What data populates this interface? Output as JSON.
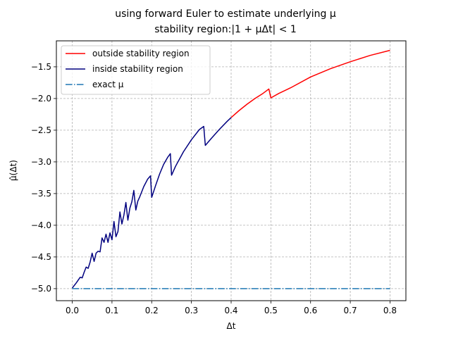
{
  "chart_data": {
    "type": "line",
    "title": "using forward Euler to estimate underlying μ",
    "subtitle": "stability region:|1 + μΔt| < 1",
    "xlabel": "Δt",
    "ylabel": "μ̂(Δt)",
    "xlim": [
      -0.04,
      0.84
    ],
    "ylim": [
      -5.19,
      -1.09
    ],
    "grid": true,
    "grid_style": "dashed",
    "legend_position": "upper-left",
    "x_ticks": [
      "0.0",
      "0.1",
      "0.2",
      "0.3",
      "0.4",
      "0.5",
      "0.6",
      "0.7",
      "0.8"
    ],
    "y_ticks": [
      "−5.0",
      "−4.5",
      "−4.0",
      "−3.5",
      "−3.0",
      "−2.5",
      "−2.0",
      "−1.5"
    ],
    "x_tick_values": [
      0.0,
      0.1,
      0.2,
      0.3,
      0.4,
      0.5,
      0.6,
      0.7,
      0.8
    ],
    "y_tick_values": [
      -5.0,
      -4.5,
      -4.0,
      -3.5,
      -3.0,
      -2.5,
      -2.0,
      -1.5
    ],
    "series": [
      {
        "name": "outside stability region",
        "color": "#ff0000",
        "style": "solid",
        "x": [
          0.4,
          0.42,
          0.44,
          0.46,
          0.48,
          0.495,
          0.5,
          0.52,
          0.55,
          0.6,
          0.65,
          0.7,
          0.75,
          0.8
        ],
        "y": [
          -2.3,
          -2.19,
          -2.09,
          -2.0,
          -1.92,
          -1.85,
          -1.99,
          -1.92,
          -1.83,
          -1.66,
          -1.53,
          -1.42,
          -1.32,
          -1.24
        ]
      },
      {
        "name": "inside stability region",
        "color": "#00007f",
        "style": "solid",
        "x": [
          0.0,
          0.01,
          0.02,
          0.025,
          0.03,
          0.035,
          0.04,
          0.045,
          0.05,
          0.055,
          0.06,
          0.065,
          0.07,
          0.075,
          0.08,
          0.085,
          0.09,
          0.095,
          0.1,
          0.105,
          0.11,
          0.115,
          0.12,
          0.125,
          0.13,
          0.135,
          0.14,
          0.145,
          0.15,
          0.155,
          0.16,
          0.165,
          0.17,
          0.18,
          0.19,
          0.197,
          0.2,
          0.21,
          0.22,
          0.23,
          0.24,
          0.247,
          0.25,
          0.26,
          0.28,
          0.3,
          0.32,
          0.331,
          0.335,
          0.35,
          0.37,
          0.39,
          0.4
        ],
        "y": [
          -4.99,
          -4.91,
          -4.82,
          -4.83,
          -4.74,
          -4.66,
          -4.68,
          -4.58,
          -4.44,
          -4.57,
          -4.44,
          -4.41,
          -4.42,
          -4.2,
          -4.27,
          -4.14,
          -4.27,
          -4.12,
          -4.23,
          -3.94,
          -4.18,
          -4.1,
          -3.79,
          -3.98,
          -3.84,
          -3.64,
          -3.92,
          -3.73,
          -3.63,
          -3.45,
          -3.76,
          -3.62,
          -3.55,
          -3.39,
          -3.27,
          -3.22,
          -3.56,
          -3.37,
          -3.19,
          -3.04,
          -2.93,
          -2.87,
          -3.21,
          -3.07,
          -2.84,
          -2.65,
          -2.49,
          -2.44,
          -2.74,
          -2.63,
          -2.49,
          -2.36,
          -2.3
        ]
      },
      {
        "name": "exact μ",
        "color": "#1f77b4",
        "style": "dashdot",
        "x": [
          0.0,
          0.8
        ],
        "y": [
          -5.0,
          -5.0
        ]
      }
    ]
  }
}
